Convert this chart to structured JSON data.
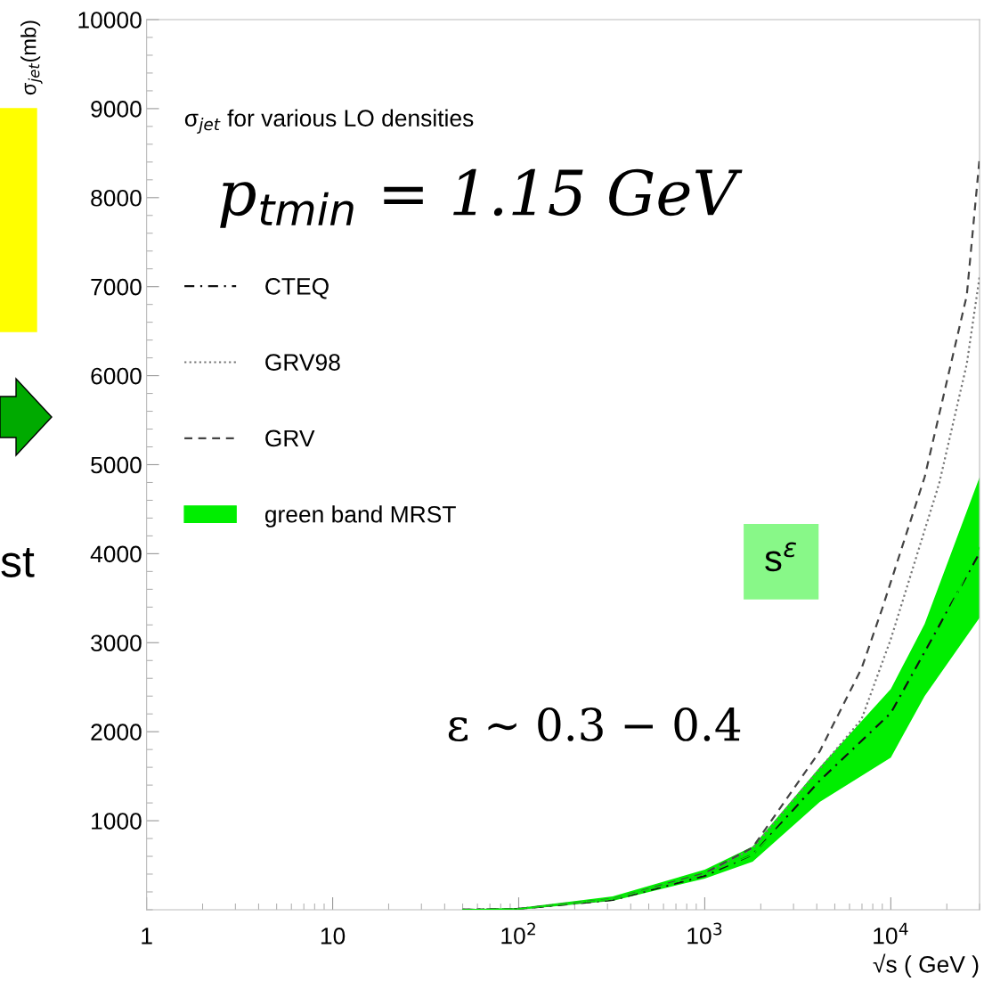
{
  "chart_data": {
    "type": "line",
    "xlabel": "√s ( GeV )",
    "ylabel": "σ$_{jet}$(mb)",
    "log": "x",
    "xlim": [
      1,
      30000
    ],
    "xticks": [
      1,
      10,
      {
        "value": 100,
        "label": "10$^{2}$"
      },
      {
        "value": 1000,
        "label": "10$^{3}$"
      },
      {
        "value": 10000,
        "label": "10$^{4}$"
      }
    ],
    "ylim": [
      0,
      10000
    ],
    "yticks": [
      1000,
      2000,
      3000,
      4000,
      5000,
      6000,
      7000,
      8000,
      9000,
      10000
    ],
    "grid": false,
    "legend": "left",
    "series": [
      {
        "name": "CTEQ",
        "color": "#111111",
        "line_style": "dashdot",
        "x": [
          50,
          100,
          320,
          1000,
          1810,
          4150,
          10000,
          30000
        ],
        "values": [
          0,
          10,
          110,
          380,
          620,
          1450,
          2210,
          4010
        ]
      },
      {
        "name": "GRV98",
        "color": "#777777",
        "line_style": "dotted",
        "x": [
          50,
          100,
          320,
          1000,
          1810,
          6960,
          10000,
          18200,
          25600,
          30000
        ],
        "values": [
          0,
          10,
          120,
          400,
          690,
          2140,
          3040,
          4790,
          6130,
          7110
        ]
      },
      {
        "name": "GRV",
        "color": "#444444",
        "line_style": "dashed",
        "x": [
          50,
          100,
          320,
          1000,
          1810,
          4150,
          6960,
          8980,
          15200,
          25600,
          30000
        ],
        "values": [
          0,
          10,
          120,
          410,
          700,
          1780,
          2710,
          3380,
          4860,
          6900,
          8440
        ]
      },
      {
        "name": "green band MRST",
        "color": "#00ee00",
        "x": [
          50,
          100,
          320,
          1000,
          1810,
          4150,
          10000,
          15200,
          30000
        ],
        "values": [
          0,
          10,
          120,
          400,
          620,
          1400,
          2100,
          2800,
          4070
        ],
        "lower": [
          0,
          0,
          100,
          350,
          540,
          1210,
          1710,
          2400,
          3280
        ],
        "upper": [
          0,
          20,
          150,
          450,
          710,
          1600,
          2480,
          3210,
          4860
        ]
      }
    ],
    "annotations": [
      "σ$_{jet}$ for various LO densities",
      "p$_{tmin}$ = 1.15 GeV",
      "ε ∼ 0.3 − 0.4",
      "s$^{ε}$",
      "st"
    ]
  }
}
